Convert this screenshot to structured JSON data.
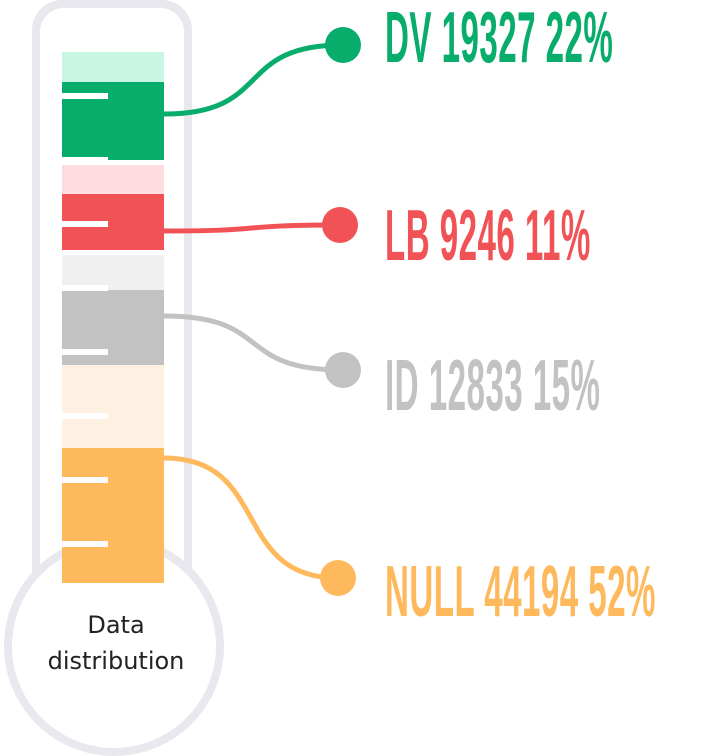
{
  "bulb": {
    "line1": "Data",
    "line2": "distribution"
  },
  "chart_data": {
    "type": "bar",
    "categories": [
      "DV",
      "LB",
      "ID",
      "NULL"
    ],
    "series": [
      {
        "values": [
          19327,
          9246,
          12833,
          44194
        ]
      }
    ],
    "percents": [
      "22%",
      "11%",
      "15%",
      "52%"
    ],
    "labels": [
      "DV 19327  22%",
      "LB 9246  11%",
      "ID 12833  15%",
      "NULL 44194  52%"
    ],
    "colors": [
      "#08ad6b",
      "#f15256",
      "#c2c2c2",
      "#fdb95c"
    ],
    "light_colors": [
      "#c9f5e3",
      "#fddde0",
      "#f0f0f0",
      "#fef1e2"
    ],
    "title": ""
  }
}
